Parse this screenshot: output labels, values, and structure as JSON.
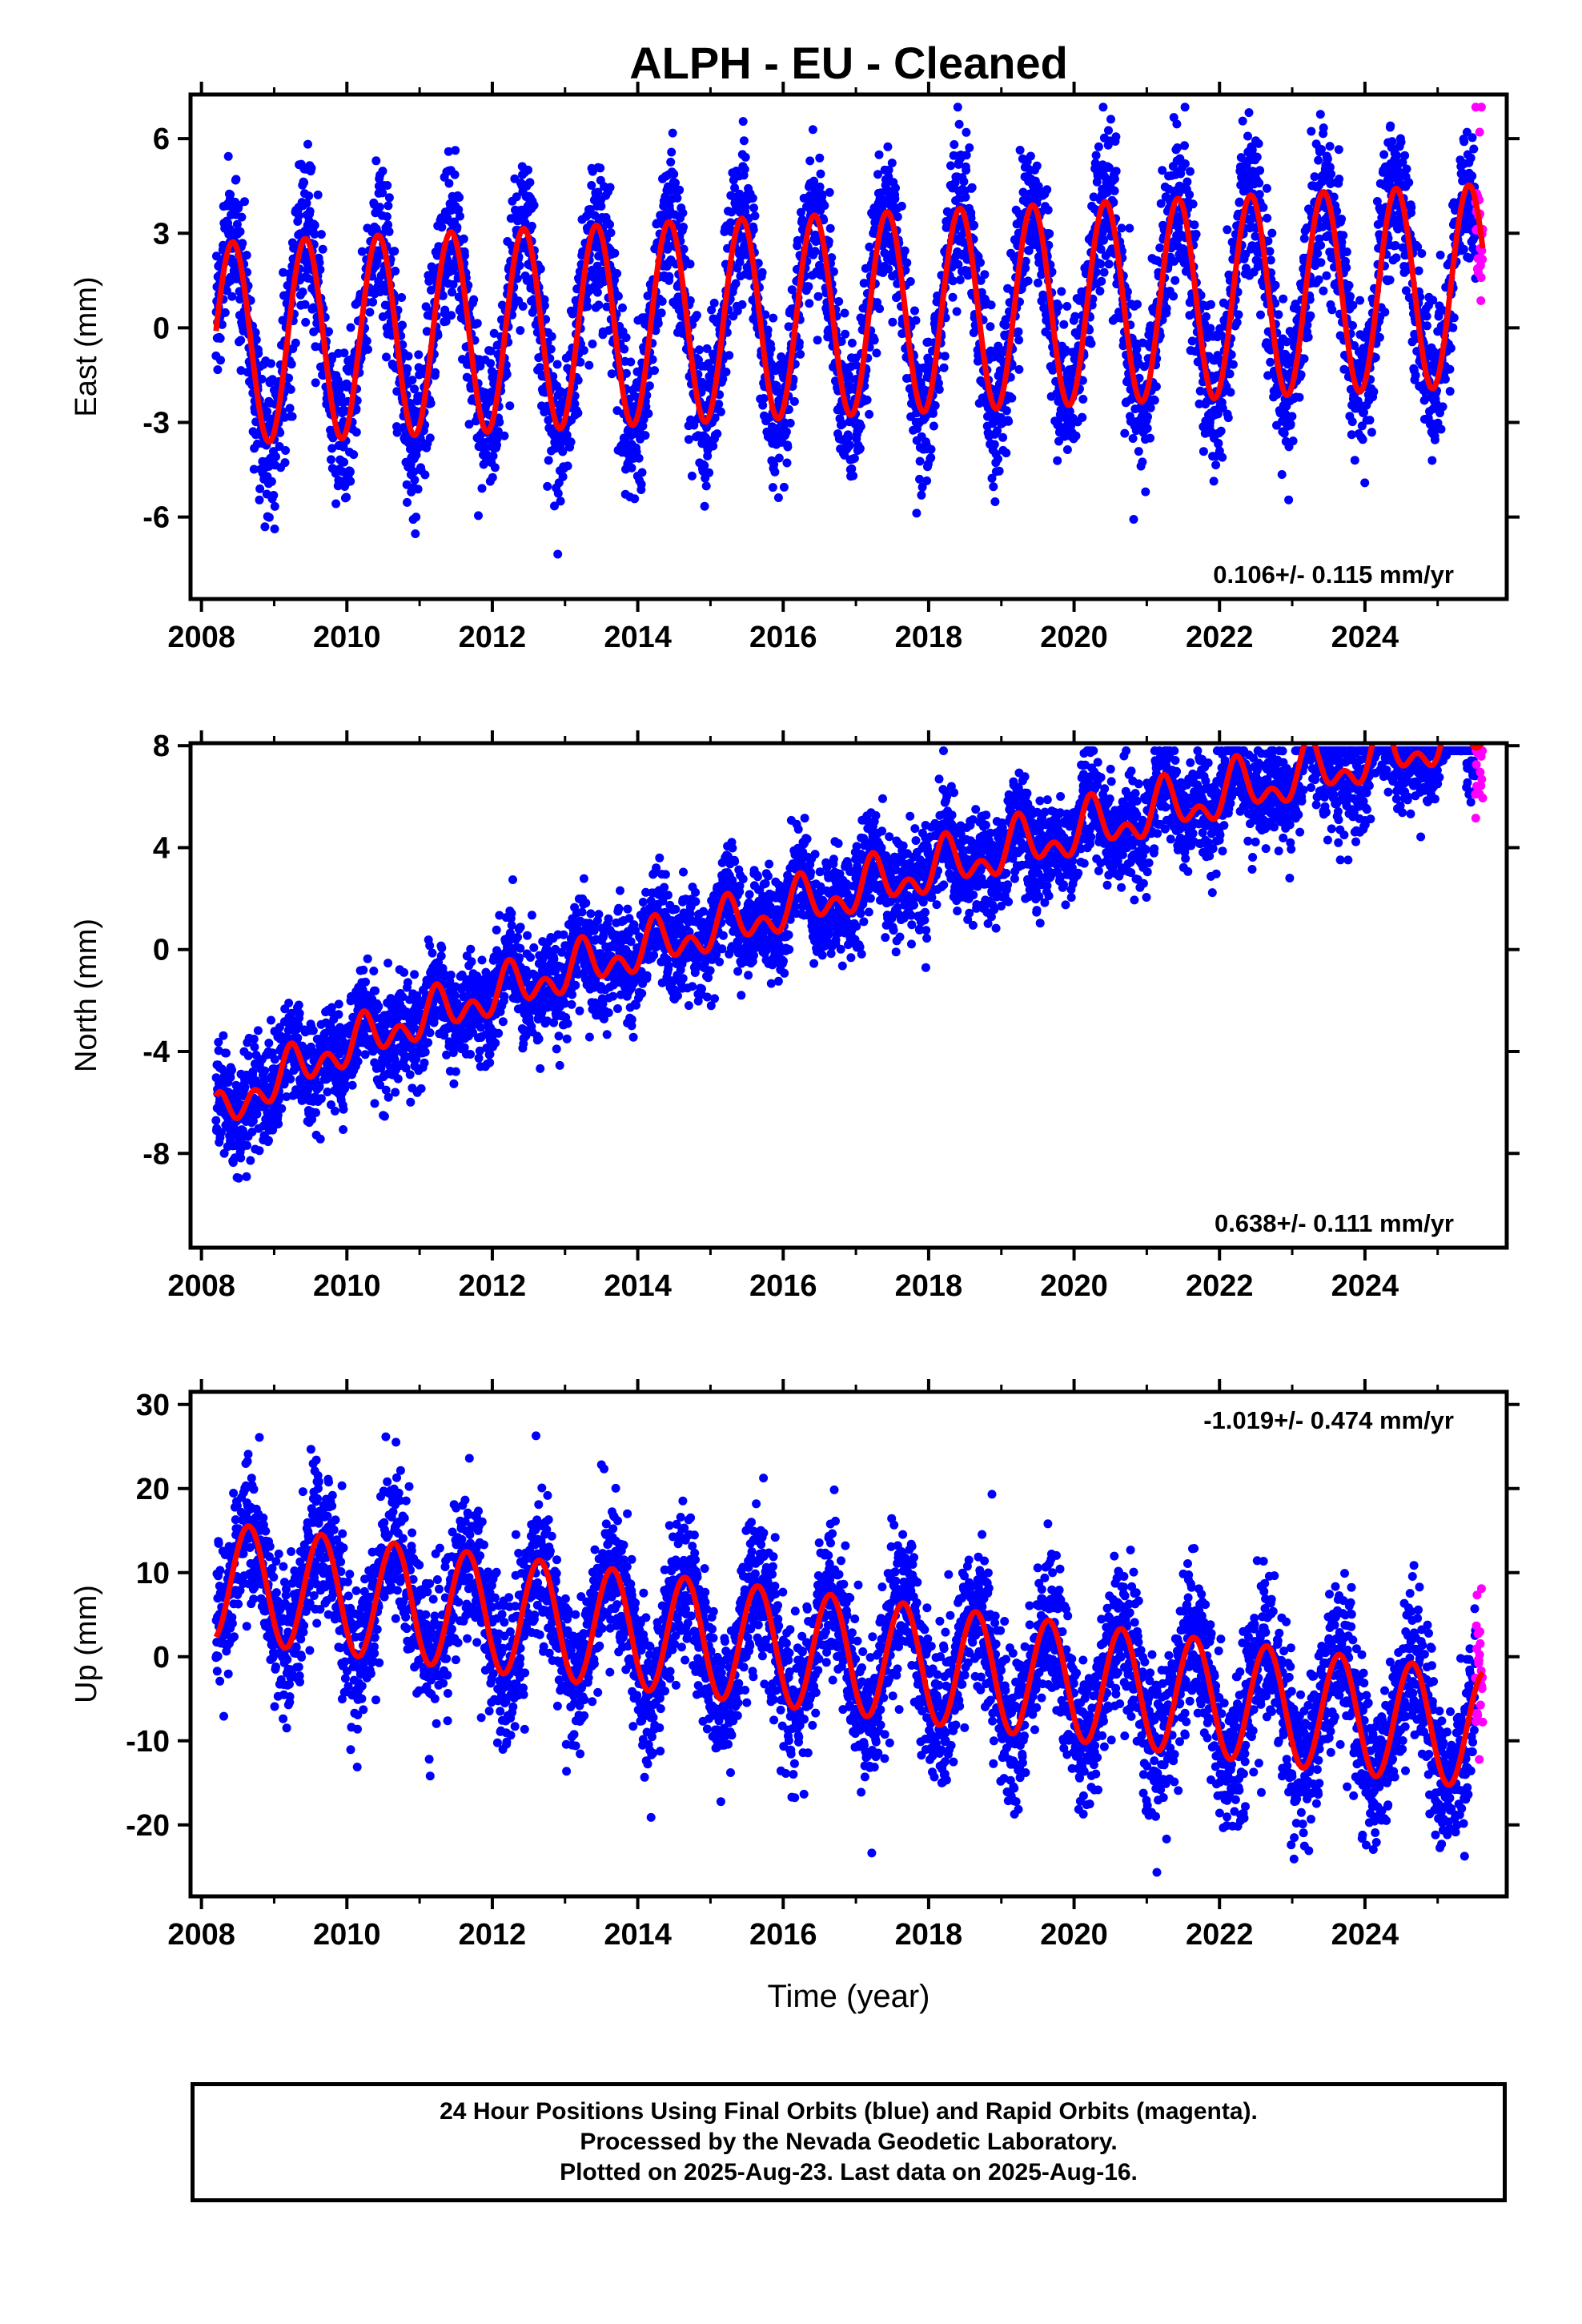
{
  "title": "ALPH  - EU - Cleaned",
  "colors": {
    "final_orbits": "#0000ff",
    "rapid_orbits": "#ff00ff",
    "model_fit": "#ff0000",
    "frame": "#000000"
  },
  "chart_data": [
    {
      "type": "scatter",
      "component": "east",
      "title": "ALPH  - EU - Cleaned",
      "xlabel": "",
      "ylabel": "East (mm)",
      "xlim": [
        2007.85,
        2025.95
      ],
      "ylim": [
        -8.6,
        7.4
      ],
      "xticks": [
        2008,
        2010,
        2012,
        2014,
        2016,
        2018,
        2020,
        2022,
        2024
      ],
      "xtick_labels": [
        "2008",
        "2010",
        "2012",
        "2014",
        "2016",
        "2018",
        "2020",
        "2022",
        "2024"
      ],
      "yticks": [
        -6,
        -3,
        0,
        3,
        6
      ],
      "ytick_labels": [
        "-6",
        "-3",
        "0",
        "3",
        "6"
      ],
      "rate_label": "0.106+/- 0.115 mm/yr",
      "rate_position": "bottom-right",
      "data_span": [
        2008.2,
        2025.62
      ],
      "rapid_span": [
        2025.52,
        2025.62
      ],
      "model": {
        "offset_mm": -0.5,
        "rate_mm_per_yr": 0.106,
        "annual_amplitude_mm_start": 3.2,
        "annual_amplitude_mm_end": 3.2,
        "annual_phase_yr": 0.18,
        "semiannual_amplitude_mm": 0.0,
        "semiannual_phase_yr": 0.0,
        "scatter_sd_mm": 1.2,
        "min_mm": -7.8,
        "max_mm": 7.0
      },
      "series": [
        {
          "name": "Final Orbits",
          "color": "#0000ff"
        },
        {
          "name": "Rapid Orbits",
          "color": "#ff00ff"
        },
        {
          "name": "",
          "color": "#ff0000"
        }
      ]
    },
    {
      "type": "scatter",
      "component": "north",
      "title": "",
      "xlabel": "",
      "ylabel": "North (mm)",
      "xlim": [
        2007.85,
        2025.95
      ],
      "ylim": [
        -11.7,
        8.1
      ],
      "xticks": [
        2008,
        2010,
        2012,
        2014,
        2016,
        2018,
        2020,
        2022,
        2024
      ],
      "xtick_labels": [
        "2008",
        "2010",
        "2012",
        "2014",
        "2016",
        "2018",
        "2020",
        "2022",
        "2024"
      ],
      "yticks": [
        -8,
        -4,
        0,
        4,
        8
      ],
      "ytick_labels": [
        "-8",
        "-4",
        "0",
        "4",
        "8"
      ],
      "rate_label": "0.638+/- 0.111 mm/yr",
      "rate_position": "bottom-right",
      "data_span": [
        2008.2,
        2025.62
      ],
      "rapid_span": [
        2025.52,
        2025.62
      ],
      "model": {
        "offset_mm": -6.8,
        "rate_mm_per_yr": 0.638,
        "log_amp_mm": 1.2,
        "log_tau_yr": 0.5,
        "annual_amplitude_mm_start": 0.5,
        "annual_amplitude_mm_end": 0.9,
        "annual_phase_yr": 0.0,
        "semiannual_amplitude_mm": 0.6,
        "semiannual_phase_yr": 0.1,
        "scatter_sd_mm": 1.0,
        "min_mm": -11.5,
        "max_mm": 7.8
      },
      "series": [
        {
          "name": "Final Orbits",
          "color": "#0000ff"
        },
        {
          "name": "Rapid Orbits",
          "color": "#ff00ff"
        },
        {
          "name": "",
          "color": "#ff0000"
        }
      ]
    },
    {
      "type": "scatter",
      "component": "up",
      "title": "",
      "xlabel": "Time (year)",
      "ylabel": "Up (mm)",
      "xlim": [
        2007.85,
        2025.95
      ],
      "ylim": [
        -28.5,
        31.5
      ],
      "xticks": [
        2008,
        2010,
        2012,
        2014,
        2016,
        2018,
        2020,
        2022,
        2024
      ],
      "xtick_labels": [
        "2008",
        "2010",
        "2012",
        "2014",
        "2016",
        "2018",
        "2020",
        "2022",
        "2024"
      ],
      "yticks": [
        -20,
        -10,
        0,
        10,
        20,
        30
      ],
      "ytick_labels": [
        "-20",
        "-10",
        "0",
        "10",
        "20",
        "30"
      ],
      "rate_label": "-1.019+/- 0.474 mm/yr",
      "rate_position": "top-right",
      "data_span": [
        2008.2,
        2025.62
      ],
      "rapid_span": [
        2025.52,
        2025.62
      ],
      "model": {
        "offset_mm": 9.0,
        "rate_mm_per_yr": -1.019,
        "annual_amplitude_mm_start": 7.0,
        "annual_amplitude_mm_end": 7.0,
        "annual_phase_yr": 0.4,
        "semiannual_amplitude_mm": 0.0,
        "semiannual_phase_yr": 0.0,
        "scatter_sd_mm": 4.5,
        "min_mm": -27.0,
        "max_mm": 29.5
      },
      "series": [
        {
          "name": "Final Orbits",
          "color": "#0000ff"
        },
        {
          "name": "Rapid Orbits",
          "color": "#ff00ff"
        },
        {
          "name": "",
          "color": "#ff0000"
        }
      ]
    }
  ],
  "footer": {
    "line1": "24 Hour Positions Using Final Orbits (blue) and Rapid Orbits (magenta).",
    "line2": "Processed by the Nevada Geodetic Laboratory.",
    "line3": "Plotted on 2025-Aug-23. Last data on 2025-Aug-16."
  }
}
